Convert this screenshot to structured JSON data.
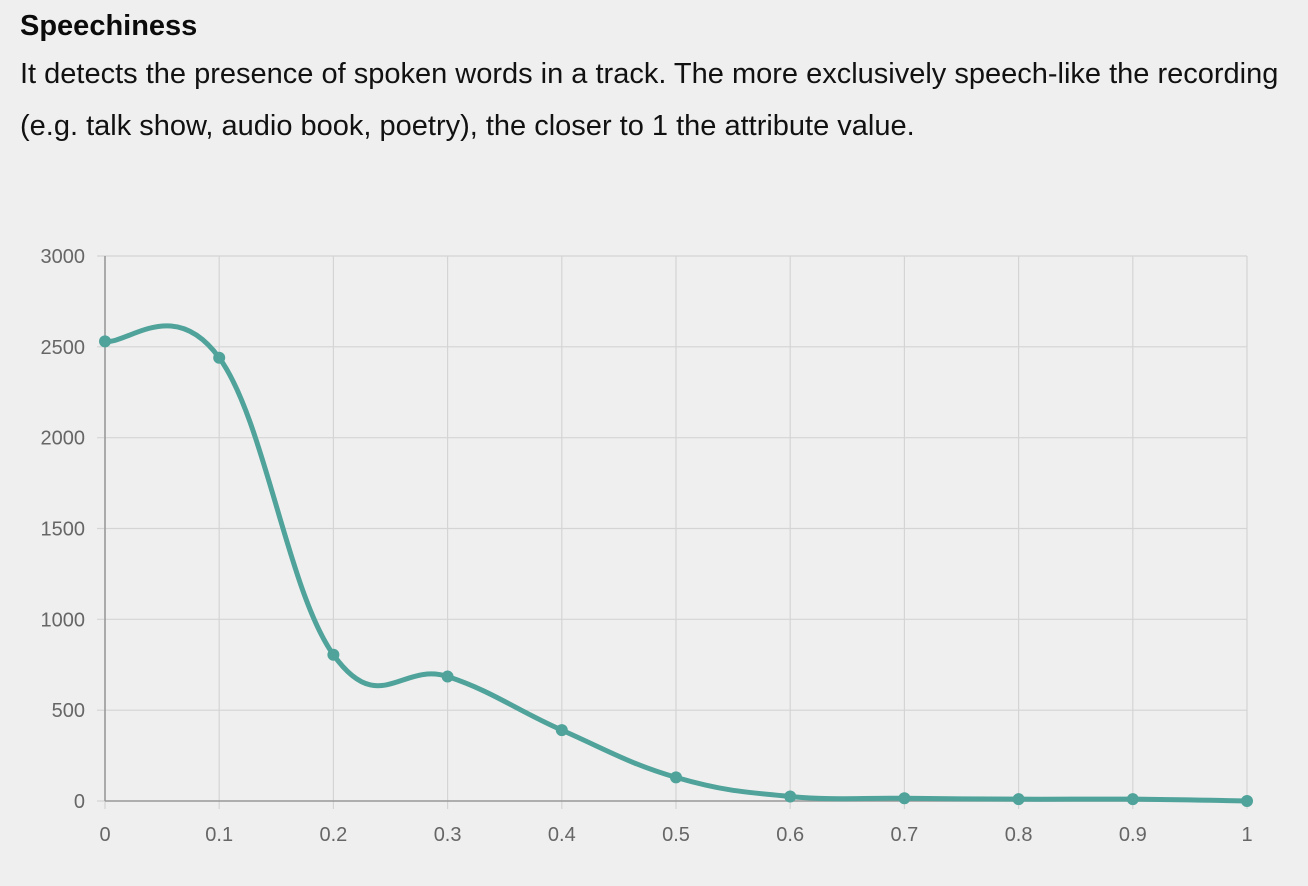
{
  "header": {
    "title": "Speechiness",
    "description": "It detects the presence of spoken words in a track. The more exclusively speech-like the recording (e.g. talk show, audio book, poetry), the closer to 1 the attribute value."
  },
  "chart_data": {
    "type": "line",
    "title": "",
    "xlabel": "",
    "ylabel": "",
    "x": [
      0,
      0.1,
      0.2,
      0.3,
      0.4,
      0.5,
      0.6,
      0.7,
      0.8,
      0.9,
      1
    ],
    "series": [
      {
        "values": [
          2530,
          2440,
          805,
          685,
          390,
          130,
          25,
          15,
          10,
          10,
          0
        ],
        "color": "#4fa39a"
      }
    ],
    "xlim": [
      0,
      1
    ],
    "ylim": [
      0,
      3000
    ],
    "x_ticks": [
      "0",
      "0.1",
      "0.2",
      "0.3",
      "0.4",
      "0.5",
      "0.6",
      "0.7",
      "0.8",
      "0.9",
      "1"
    ],
    "y_ticks": [
      "0",
      "500",
      "1000",
      "1500",
      "2000",
      "2500",
      "3000"
    ],
    "grid": true,
    "legend": "none",
    "colors": {
      "line": "#4fa39a",
      "grid": "#d4d4d4",
      "axis": "#9a9a9a",
      "tick_text": "#666666"
    }
  }
}
